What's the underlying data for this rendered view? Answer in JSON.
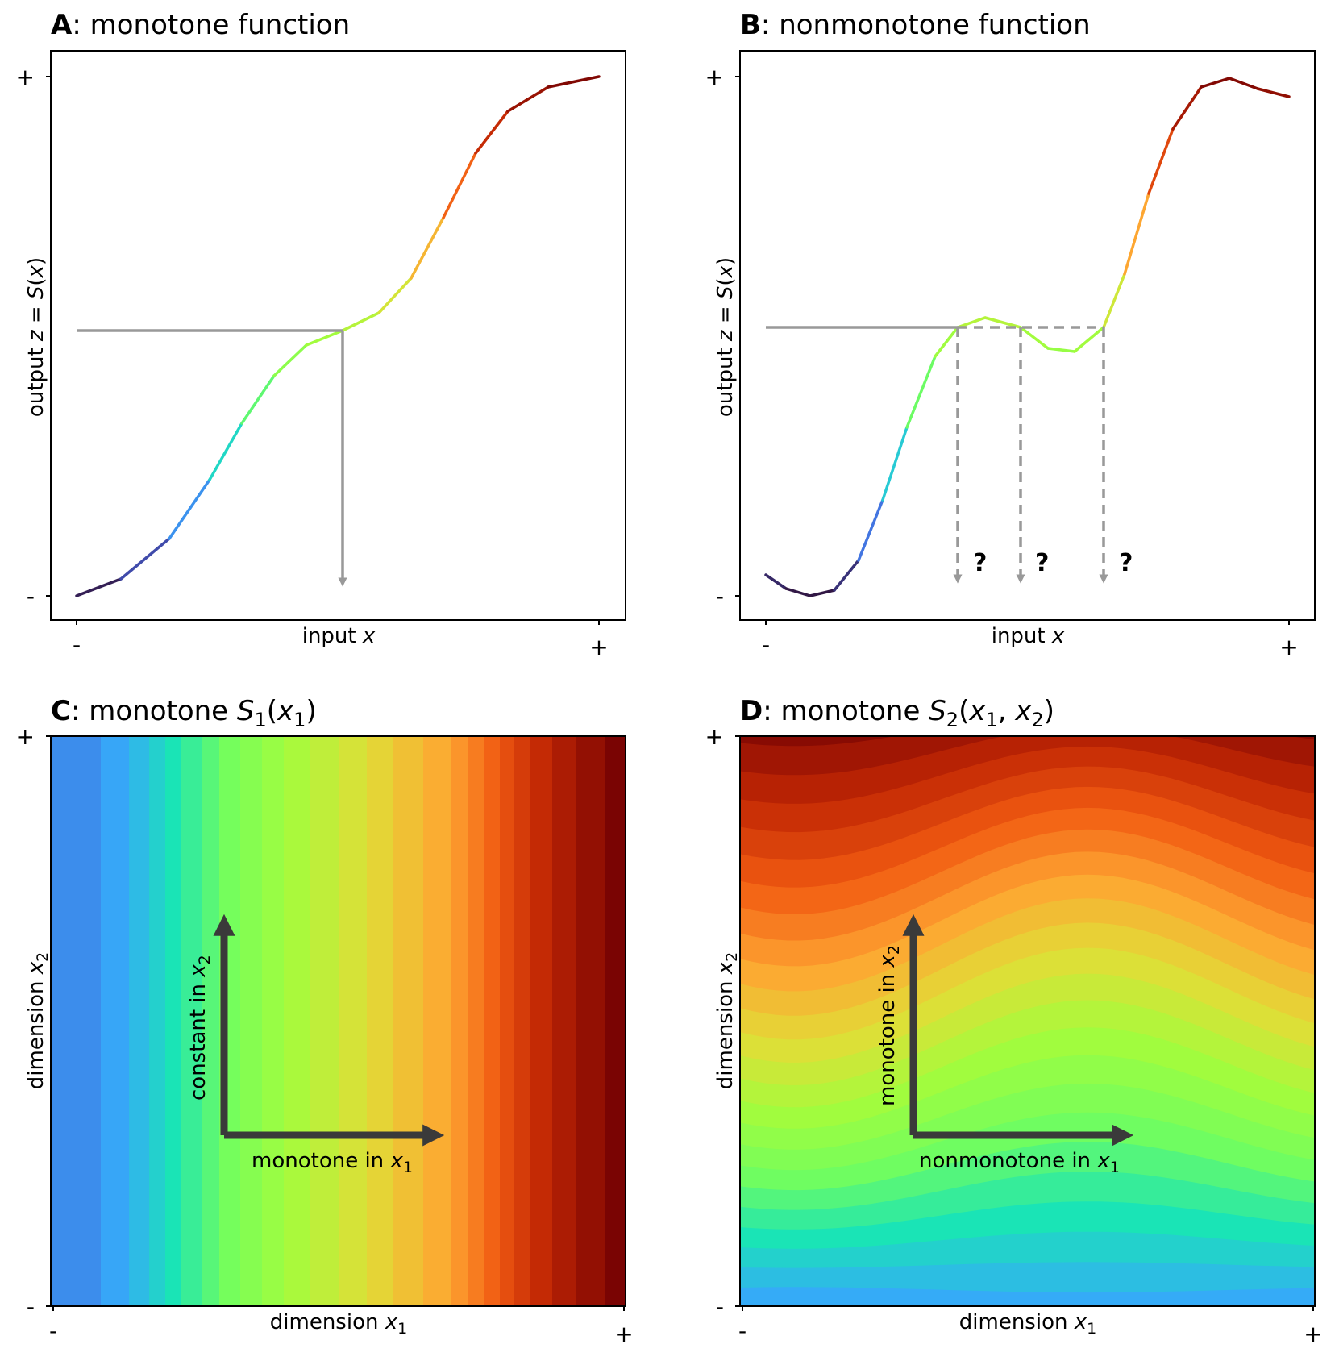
{
  "panels": {
    "A": {
      "letter": "A",
      "title": "monotone function",
      "xlabel_text": "input ",
      "xlabel_var": "x",
      "ylabel_pre": "output ",
      "ylabel_eq": "z = ",
      "ylabel_fn": "S",
      "ylabel_arg": "(x)",
      "x_tick_min": "-",
      "x_tick_max": "+",
      "y_tick_min": "-",
      "y_tick_max": "+"
    },
    "B": {
      "letter": "B",
      "title": "nonmonotone function",
      "xlabel_text": "input ",
      "xlabel_var": "x",
      "ylabel_pre": "output ",
      "ylabel_eq": "z = ",
      "ylabel_fn": "S",
      "ylabel_arg": "(x)",
      "x_tick_min": "-",
      "x_tick_max": "+",
      "y_tick_min": "-",
      "y_tick_max": "+",
      "question_mark": "?"
    },
    "C": {
      "letter": "C",
      "title_pre": "monotone ",
      "title_fn": "S",
      "title_sub": "1",
      "title_args": "(x",
      "title_args_sub": "1",
      "title_close": ")",
      "xlabel_text": "dimension ",
      "ylabel_text": "dimension ",
      "var": "x",
      "sub1": "1",
      "sub2": "2",
      "arrow_x_label": "monotone in ",
      "arrow_y_label": "constant in ",
      "x_tick_min": "-",
      "x_tick_max": "+",
      "y_tick_min": "-",
      "y_tick_max": "+"
    },
    "D": {
      "letter": "D",
      "title_pre": "monotone ",
      "title_fn": "S",
      "title_sub": "2",
      "title_args": "(x",
      "title_args_sub1": "1",
      "title_comma": ", x",
      "title_args_sub2": "2",
      "title_close": ")",
      "xlabel_text": "dimension ",
      "ylabel_text": "dimension ",
      "var": "x",
      "sub1": "1",
      "sub2": "2",
      "arrow_x_label": "nonmonotone in ",
      "arrow_y_label": "monotone in ",
      "x_tick_min": "-",
      "x_tick_max": "+",
      "y_tick_min": "-",
      "y_tick_max": "+"
    }
  },
  "colors": {
    "guide": "#999999",
    "arrow": "#3a3a3a",
    "colormap": "turbo"
  }
}
